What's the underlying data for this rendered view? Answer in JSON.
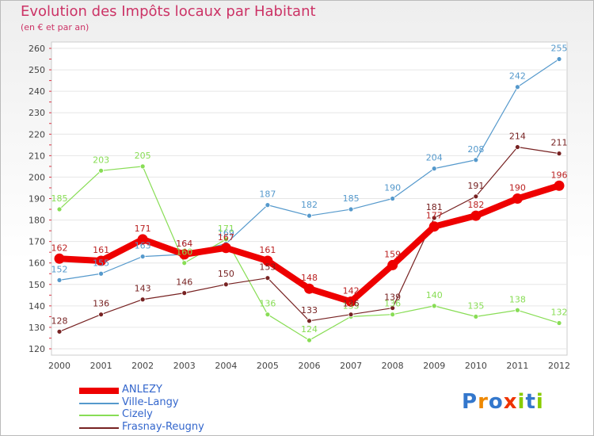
{
  "chart_data": {
    "type": "line",
    "title": "Evolution des Impôts locaux par Habitant",
    "subtitle": "(en € et par an)",
    "xlabel": "",
    "ylabel": "",
    "x": [
      "2000",
      "2001",
      "2002",
      "2003",
      "2004",
      "2005",
      "2006",
      "2007",
      "2008",
      "2009",
      "2010",
      "2011",
      "2012"
    ],
    "ylim": [
      120,
      260
    ],
    "yticks": [
      "120",
      "130",
      "140",
      "150",
      "160",
      "170",
      "180",
      "190",
      "200",
      "210",
      "220",
      "230",
      "240",
      "250",
      "260"
    ],
    "legend_position": "bottom-left",
    "series": [
      {
        "name": "ANLEZY",
        "color": "#ee0000",
        "values": [
          162,
          161,
          171,
          164,
          167,
          161,
          148,
          142,
          159,
          177,
          182,
          190,
          196
        ]
      },
      {
        "name": "Ville-Langy",
        "color": "#5599cc",
        "values": [
          152,
          155,
          163,
          164,
          169,
          187,
          182,
          185,
          190,
          204,
          208,
          242,
          255
        ]
      },
      {
        "name": "Cizely",
        "color": "#88dd55",
        "values": [
          185,
          203,
          205,
          160,
          171,
          136,
          124,
          135,
          136,
          140,
          135,
          138,
          132
        ]
      },
      {
        "name": "Frasnay-Reugny",
        "color": "#772222",
        "values": [
          128,
          136,
          143,
          146,
          150,
          153,
          133,
          136,
          139,
          181,
          191,
          214,
          211
        ]
      }
    ]
  },
  "logo": {
    "letters": [
      "P",
      "r",
      "o",
      "x",
      "i",
      "t",
      "i"
    ],
    "colors": [
      "#3377cc",
      "#ee8800",
      "#3377cc",
      "#ee3300",
      "#88cc00",
      "#3377cc",
      "#88cc00"
    ]
  }
}
